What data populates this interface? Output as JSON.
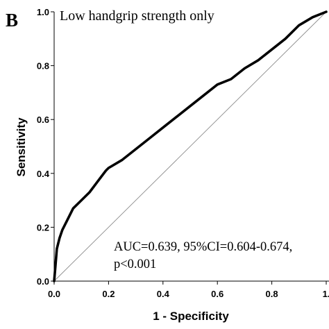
{
  "chart_data": {
    "type": "line",
    "panel_label": "B",
    "subtitle": "Low handgrip strength only",
    "xlabel": "1 - Specificity",
    "ylabel": "Sensitivity",
    "xlim": [
      0,
      1
    ],
    "ylim": [
      0,
      1
    ],
    "x_ticks": [
      "0.0",
      "0.2",
      "0.4",
      "0.6",
      "0.8",
      "1."
    ],
    "y_ticks": [
      "0.0",
      "0.2",
      "0.4",
      "0.6",
      "0.8",
      "1.0"
    ],
    "annotation_lines": [
      "AUC=0.639, 95%CI=0.604-0.674,",
      "p<0.001"
    ],
    "series": [
      {
        "x": [
          0.0,
          0.005,
          0.01,
          0.02,
          0.03,
          0.05,
          0.07,
          0.1,
          0.13,
          0.16,
          0.19,
          0.2,
          0.25,
          0.3,
          0.35,
          0.4,
          0.45,
          0.5,
          0.55,
          0.6,
          0.65,
          0.7,
          0.75,
          0.8,
          0.85,
          0.9,
          0.95,
          1.0
        ],
        "y": [
          0.0,
          0.06,
          0.12,
          0.16,
          0.19,
          0.23,
          0.27,
          0.3,
          0.33,
          0.37,
          0.41,
          0.42,
          0.45,
          0.49,
          0.53,
          0.57,
          0.61,
          0.65,
          0.69,
          0.73,
          0.75,
          0.79,
          0.82,
          0.86,
          0.9,
          0.95,
          0.98,
          1.0
        ]
      }
    ],
    "reference_line": {
      "x": [
        0,
        1
      ],
      "y": [
        0,
        1
      ]
    }
  }
}
